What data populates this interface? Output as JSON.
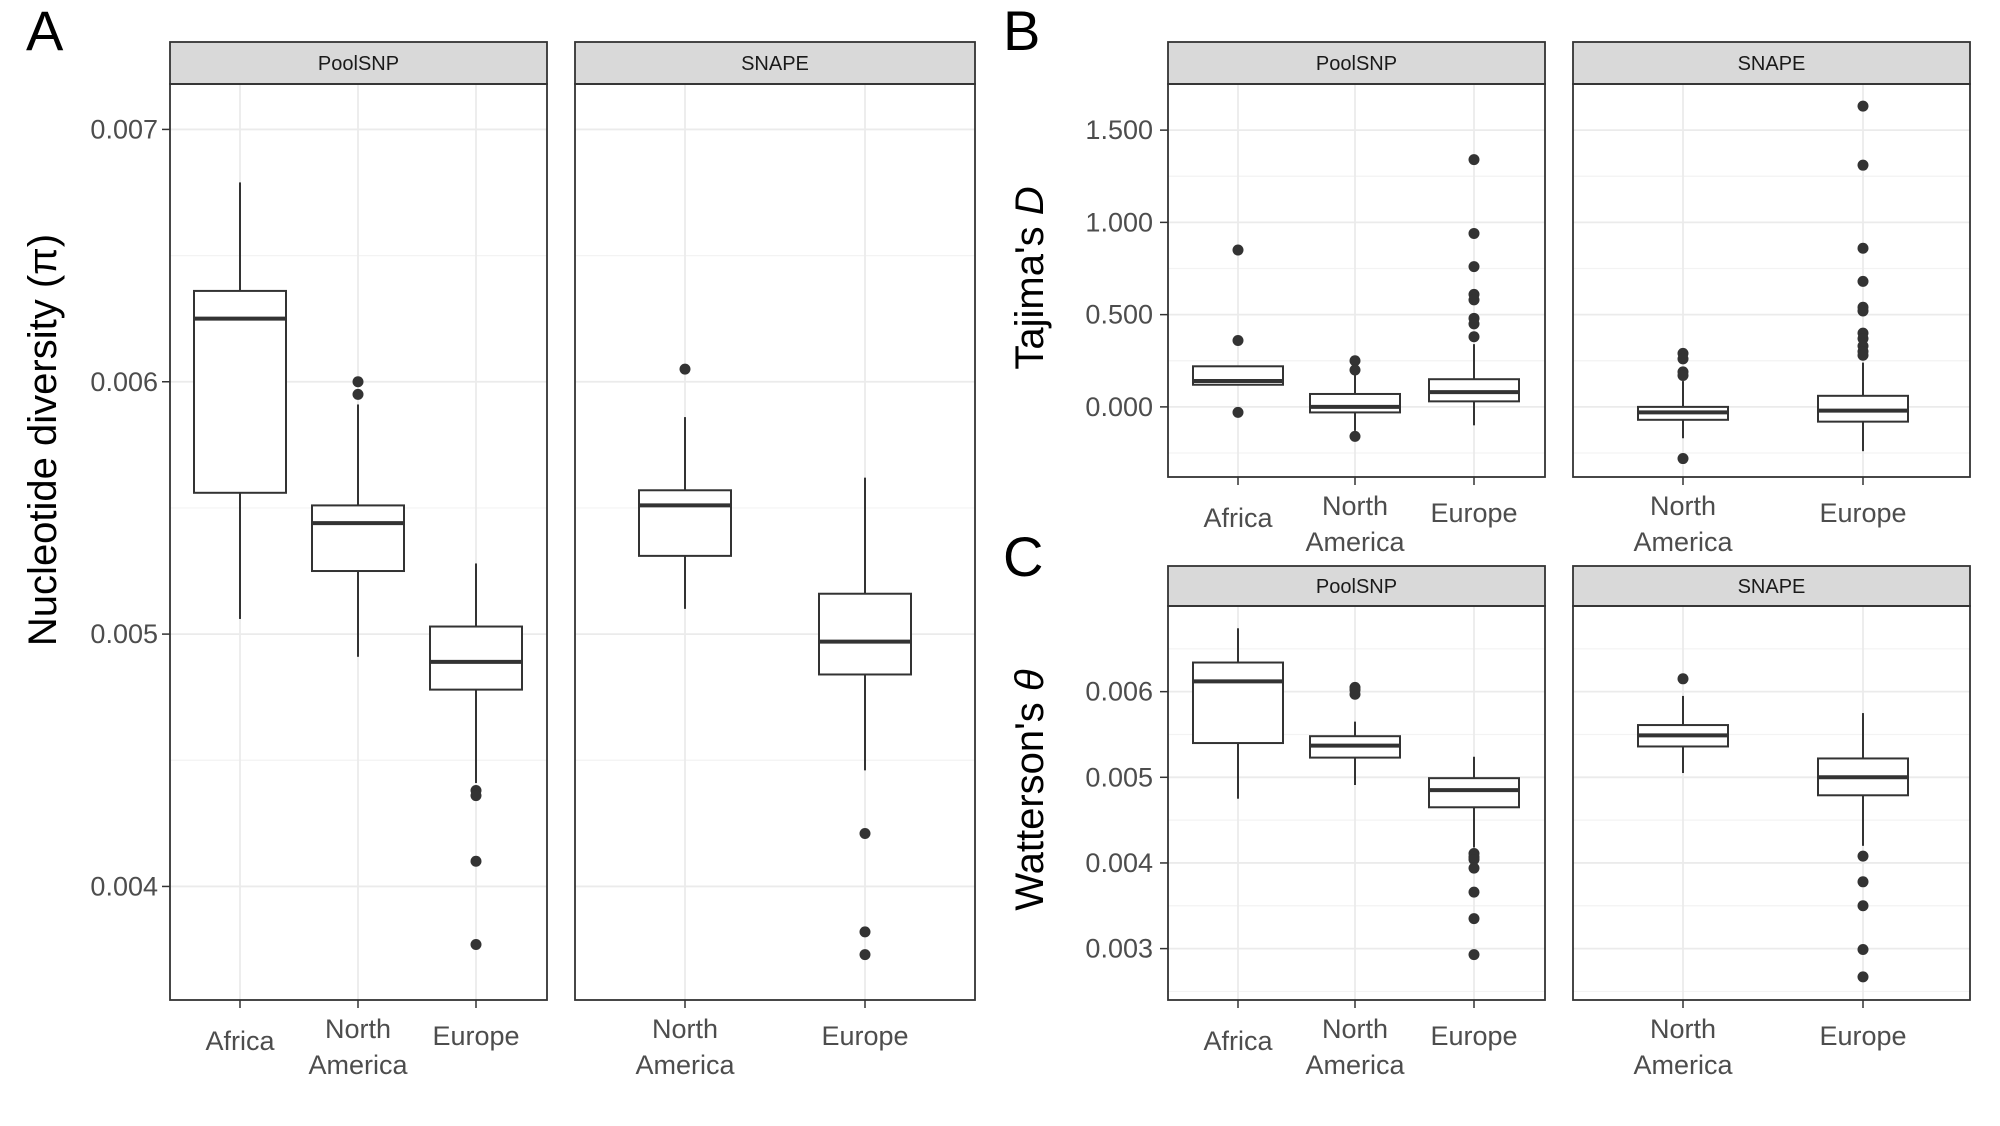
{
  "figure_letters": {
    "a": "A",
    "b": "B",
    "c": "C"
  },
  "facets": {
    "poolsnp": "PoolSNP",
    "snape": "SNAPE"
  },
  "axis_titles": {
    "a": "Nucleotide diversity (π)",
    "b_text": "Tajima's ",
    "b_italic": "D",
    "c_text": "Watterson's ",
    "c_italic": "θ"
  },
  "colors": {
    "strip_fill": "#d9d9d9",
    "panel_border": "#333333",
    "grid": "#ebebeb",
    "box_stroke": "#333333",
    "outlier": "#333333"
  },
  "chart_data": [
    {
      "id": "A",
      "type": "boxplot",
      "ylabel": "Nucleotide diversity (π)",
      "ylim": [
        0.00355,
        0.00718
      ],
      "yticks": [
        0.004,
        0.005,
        0.006,
        0.007
      ],
      "ytick_labels": [
        "0.004",
        "0.005",
        "0.006",
        "0.007"
      ],
      "grid": true,
      "facets": [
        {
          "strip": "PoolSNP",
          "categories": [
            "Africa",
            "North America",
            "Europe"
          ],
          "boxes": [
            {
              "category": "Africa",
              "whisker_low": 0.00506,
              "q1": 0.00556,
              "median": 0.00625,
              "q3": 0.00636,
              "whisker_high": 0.00679,
              "outliers": []
            },
            {
              "category": "North America",
              "whisker_low": 0.00491,
              "q1": 0.00525,
              "median": 0.00544,
              "q3": 0.00551,
              "whisker_high": 0.00591,
              "outliers": [
                0.006,
                0.00595
              ]
            },
            {
              "category": "Europe",
              "whisker_low": 0.00441,
              "q1": 0.00478,
              "median": 0.00489,
              "q3": 0.00503,
              "whisker_high": 0.00528,
              "outliers": [
                0.00438,
                0.00436,
                0.0041,
                0.00377
              ]
            }
          ]
        },
        {
          "strip": "SNAPE",
          "categories": [
            "North America",
            "Europe"
          ],
          "boxes": [
            {
              "category": "North America",
              "whisker_low": 0.0051,
              "q1": 0.00531,
              "median": 0.00551,
              "q3": 0.00557,
              "whisker_high": 0.00586,
              "outliers": [
                0.00605
              ]
            },
            {
              "category": "Europe",
              "whisker_low": 0.00446,
              "q1": 0.00484,
              "median": 0.00497,
              "q3": 0.00516,
              "whisker_high": 0.00562,
              "outliers": [
                0.00421,
                0.00382,
                0.00373
              ]
            }
          ]
        }
      ]
    },
    {
      "id": "B",
      "type": "boxplot",
      "ylabel": "Tajima's D",
      "ylim": [
        -0.38,
        1.75
      ],
      "yticks": [
        0.0,
        0.5,
        1.0,
        1.5
      ],
      "ytick_labels": [
        "0.000",
        "0.500",
        "1.000",
        "1.500"
      ],
      "grid": true,
      "facets": [
        {
          "strip": "PoolSNP",
          "categories": [
            "Africa",
            "North America",
            "Europe"
          ],
          "boxes": [
            {
              "category": "Africa",
              "whisker_low": 0.12,
              "q1": 0.12,
              "median": 0.14,
              "q3": 0.22,
              "whisker_high": 0.22,
              "outliers": [
                0.85,
                0.36,
                -0.03
              ]
            },
            {
              "category": "North America",
              "whisker_low": -0.13,
              "q1": -0.03,
              "median": 0.0,
              "q3": 0.07,
              "whisker_high": 0.18,
              "outliers": [
                0.25,
                0.2,
                -0.16
              ]
            },
            {
              "category": "Europe",
              "whisker_low": -0.1,
              "q1": 0.03,
              "median": 0.08,
              "q3": 0.15,
              "whisker_high": 0.34,
              "outliers": [
                1.34,
                0.94,
                0.76,
                0.61,
                0.58,
                0.48,
                0.45,
                0.38
              ]
            }
          ]
        },
        {
          "strip": "SNAPE",
          "categories": [
            "North America",
            "Europe"
          ],
          "boxes": [
            {
              "category": "North America",
              "whisker_low": -0.17,
              "q1": -0.07,
              "median": -0.03,
              "q3": 0.0,
              "whisker_high": 0.14,
              "outliers": [
                0.29,
                0.26,
                0.19,
                0.17,
                -0.28
              ]
            },
            {
              "category": "Europe",
              "whisker_low": -0.24,
              "q1": -0.08,
              "median": -0.02,
              "q3": 0.06,
              "whisker_high": 0.24,
              "outliers": [
                1.63,
                1.31,
                0.86,
                0.68,
                0.54,
                0.52,
                0.4,
                0.37,
                0.33,
                0.3,
                0.28
              ]
            }
          ]
        }
      ]
    },
    {
      "id": "C",
      "type": "boxplot",
      "ylabel": "Watterson's θ",
      "ylim": [
        0.0024,
        0.007
      ],
      "yticks": [
        0.003,
        0.004,
        0.005,
        0.006
      ],
      "ytick_labels": [
        "0.003",
        "0.004",
        "0.005",
        "0.006"
      ],
      "grid": true,
      "facets": [
        {
          "strip": "PoolSNP",
          "categories": [
            "Africa",
            "North America",
            "Europe"
          ],
          "boxes": [
            {
              "category": "Africa",
              "whisker_low": 0.00475,
              "q1": 0.0054,
              "median": 0.00612,
              "q3": 0.00634,
              "whisker_high": 0.00674,
              "outliers": []
            },
            {
              "category": "North America",
              "whisker_low": 0.00491,
              "q1": 0.00523,
              "median": 0.00537,
              "q3": 0.00548,
              "whisker_high": 0.00565,
              "outliers": [
                0.00605,
                0.00602,
                0.00597
              ]
            },
            {
              "category": "Europe",
              "whisker_low": 0.00418,
              "q1": 0.00465,
              "median": 0.00485,
              "q3": 0.00499,
              "whisker_high": 0.00524,
              "outliers": [
                0.00411,
                0.00407,
                0.00404,
                0.00394,
                0.00366,
                0.00335,
                0.00293
              ]
            }
          ]
        },
        {
          "strip": "SNAPE",
          "categories": [
            "North America",
            "Europe"
          ],
          "boxes": [
            {
              "category": "North America",
              "whisker_low": 0.00505,
              "q1": 0.00536,
              "median": 0.00549,
              "q3": 0.00561,
              "whisker_high": 0.00595,
              "outliers": [
                0.00615
              ]
            },
            {
              "category": "Europe",
              "whisker_low": 0.0042,
              "q1": 0.00479,
              "median": 0.005,
              "q3": 0.00522,
              "whisker_high": 0.00575,
              "outliers": [
                0.00408,
                0.00378,
                0.0035,
                0.00299,
                0.00267
              ]
            }
          ]
        }
      ]
    }
  ]
}
